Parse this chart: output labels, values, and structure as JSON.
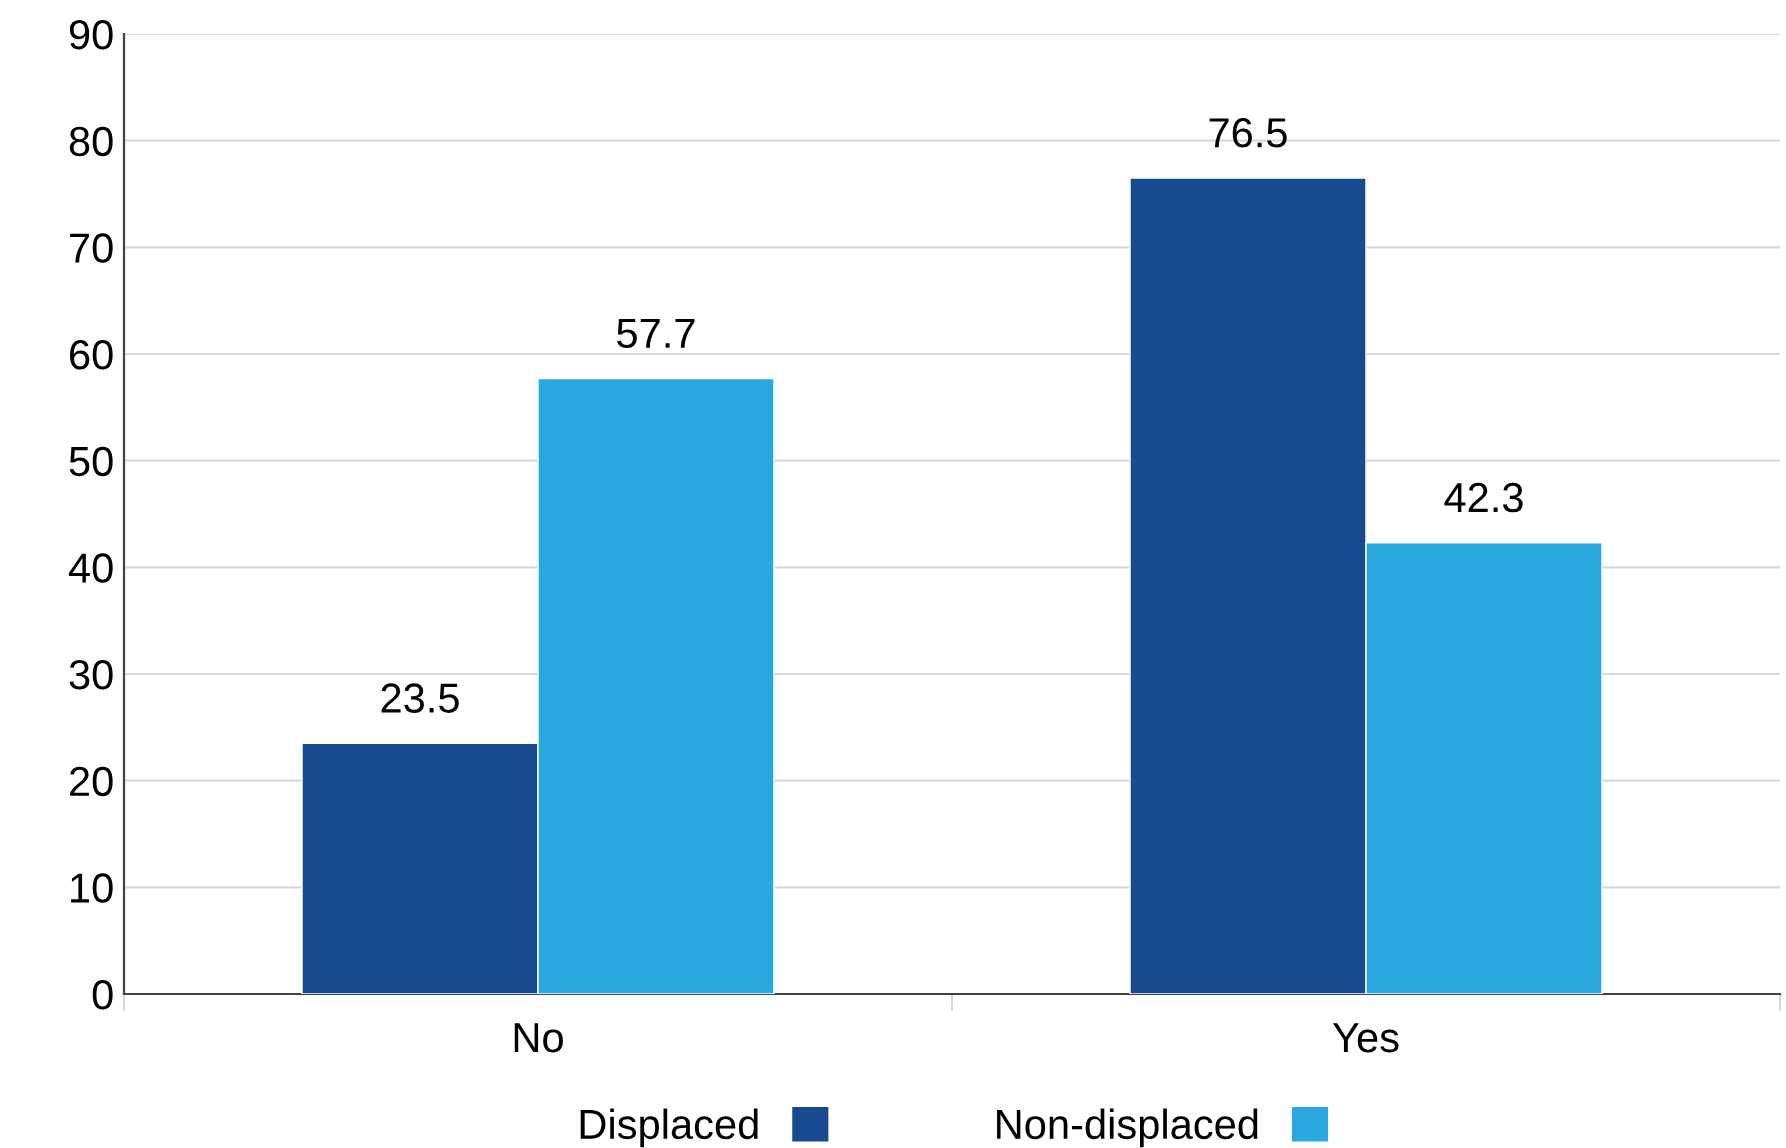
{
  "chart_data": {
    "type": "bar",
    "categories": [
      "No",
      "Yes"
    ],
    "series": [
      {
        "name": "Displaced",
        "color": "#174a8e",
        "values": [
          23.5,
          76.5
        ]
      },
      {
        "name": "Non-displaced",
        "color": "#29a8e0",
        "values": [
          57.7,
          42.3
        ]
      }
    ],
    "ylim": [
      0,
      90
    ],
    "yticks": [
      0,
      10,
      20,
      30,
      40,
      50,
      60,
      70,
      80,
      90
    ],
    "grid": "y",
    "legend": "bottom",
    "data_labels": true
  }
}
